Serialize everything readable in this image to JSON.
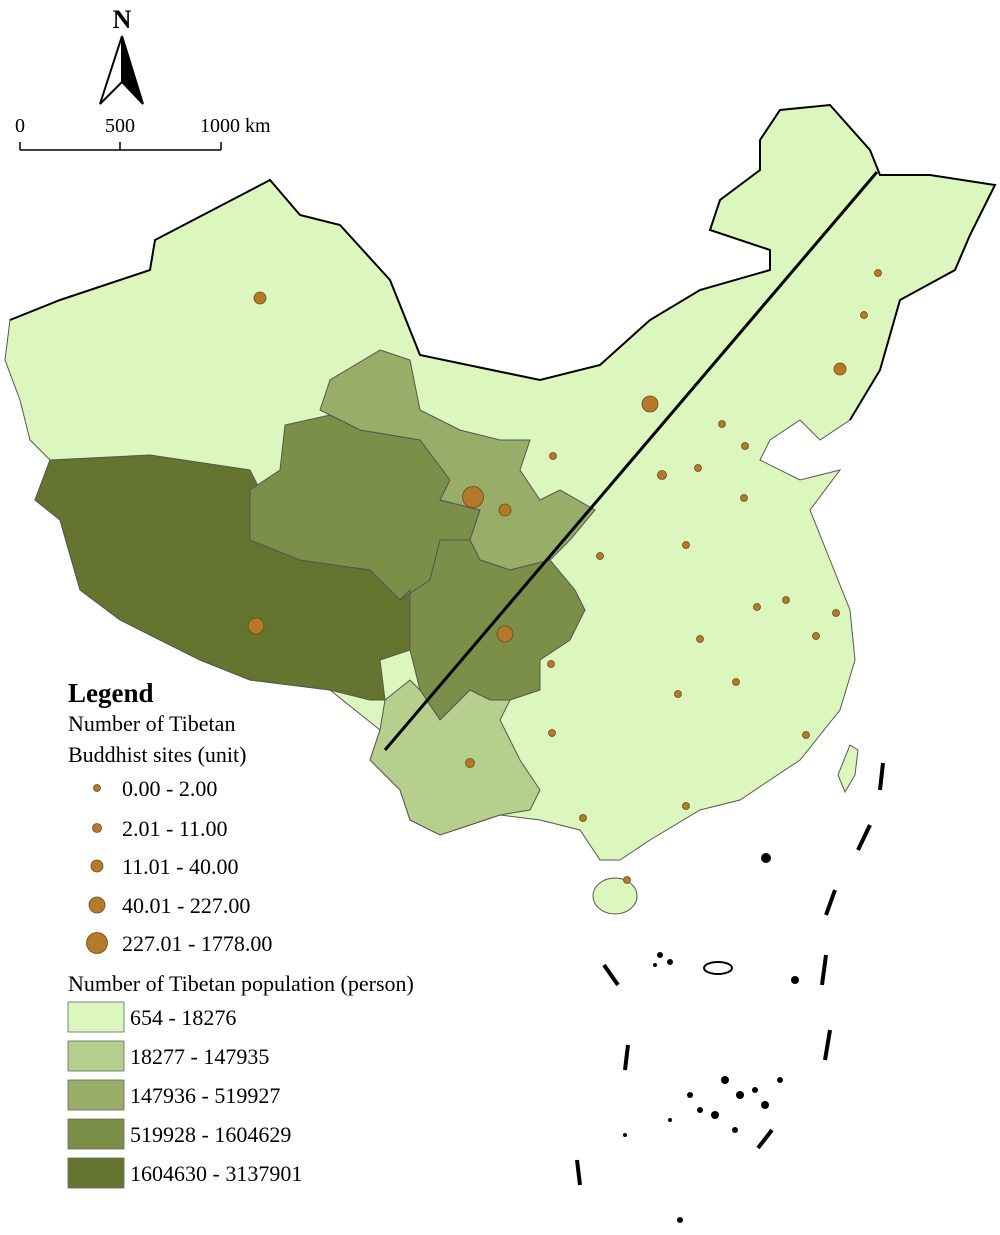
{
  "north_arrow": {
    "label": "N"
  },
  "scale_bar": {
    "labels": [
      "0",
      "500",
      "1000 km"
    ]
  },
  "legend": {
    "title": "Legend",
    "sites_title_lines": [
      "Number of Tibetan",
      "Buddhist sites (unit)"
    ],
    "sites_classes": [
      "0.00 - 2.00",
      "2.01 - 11.00",
      "11.01 - 40.00",
      "40.01 - 227.00",
      "227.01 - 1778.00"
    ],
    "sites_color": "#b5792a",
    "population_title": "Number of Tibetan population (person)",
    "population_classes": [
      {
        "label": "654 - 18276",
        "color": "#dcf7bd"
      },
      {
        "label": "18277 - 147935",
        "color": "#b6cf8d"
      },
      {
        "label": "147936 - 519927",
        "color": "#98ad68"
      },
      {
        "label": "519928 - 1604629",
        "color": "#7c8f48"
      },
      {
        "label": "1604630 - 3137901",
        "color": "#65752f"
      }
    ]
  }
}
